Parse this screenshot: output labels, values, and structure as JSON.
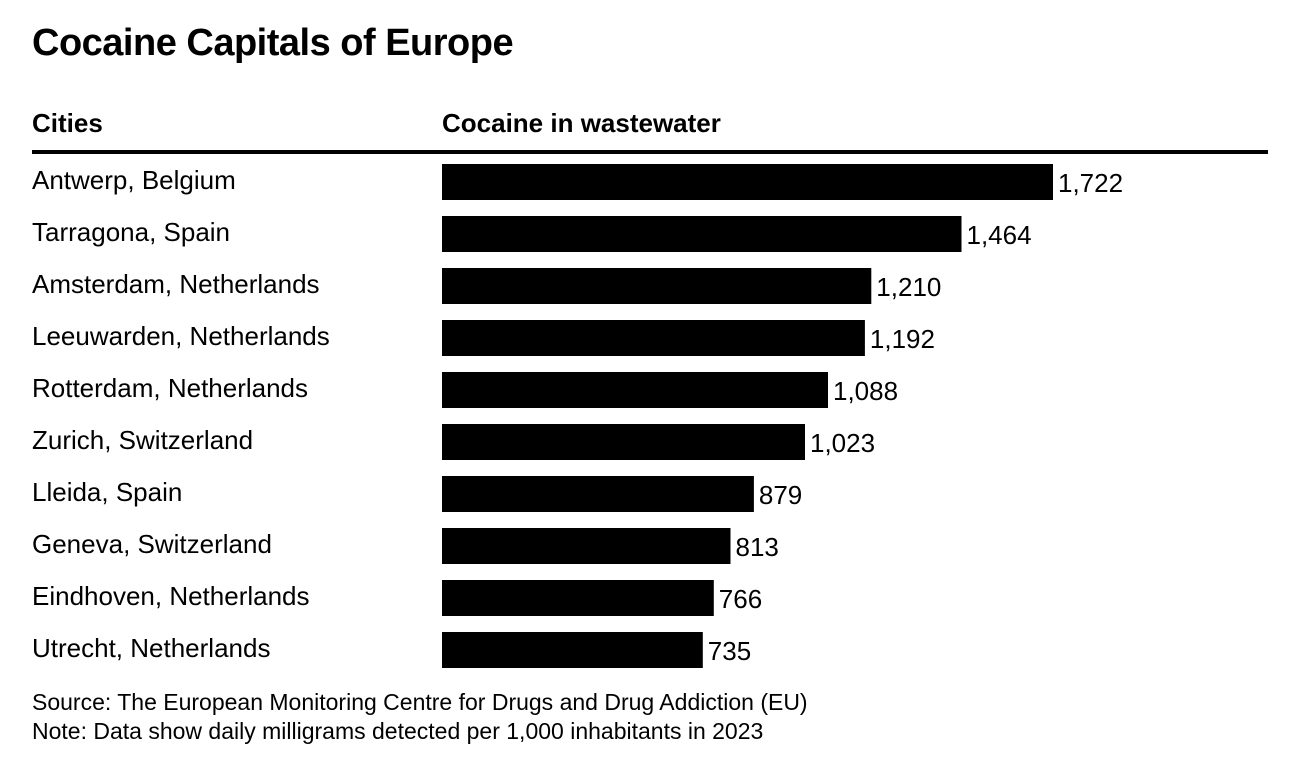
{
  "chart_data": {
    "type": "bar",
    "orientation": "horizontal",
    "title": "Cocaine Capitals of Europe",
    "category_header": "Cities",
    "value_header": "Cocaine in wastewater",
    "categories": [
      "Antwerp, Belgium",
      "Tarragona, Spain",
      "Amsterdam, Netherlands",
      "Leeuwarden, Netherlands",
      "Rotterdam, Netherlands",
      "Zurich, Switzerland",
      "Lleida, Spain",
      "Geneva, Switzerland",
      "Eindhoven, Netherlands",
      "Utrecht, Netherlands"
    ],
    "values": [
      1722,
      1464,
      1210,
      1192,
      1088,
      1023,
      879,
      813,
      766,
      735
    ],
    "value_labels": [
      "1,722",
      "1,464",
      "1,210",
      "1,192",
      "1,088",
      "1,023",
      "879",
      "813",
      "766",
      "735"
    ],
    "xlim": [
      0,
      1722
    ],
    "bar_color": "#000000",
    "grid": false,
    "legend": "none"
  },
  "footer": {
    "source": "Source: The European Monitoring Centre for Drugs and Drug Addiction (EU)",
    "note": "Note: Data show daily milligrams detected per 1,000 inhabitants in 2023"
  }
}
